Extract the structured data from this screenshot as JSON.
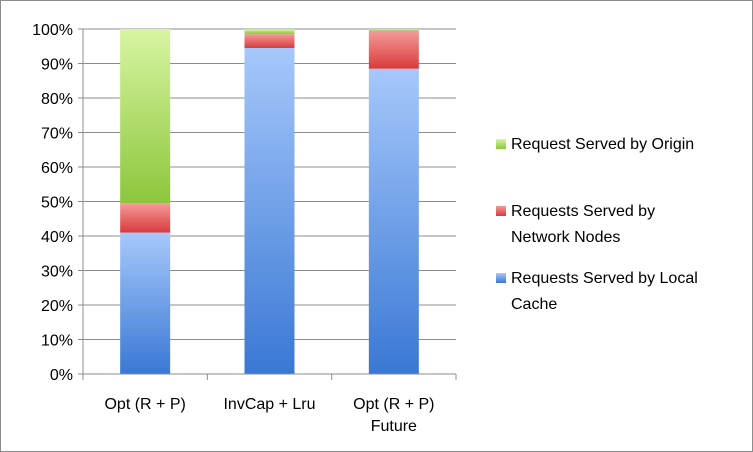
{
  "chart_data": {
    "type": "bar",
    "stacked": true,
    "categories": [
      [
        "Opt (R + P)"
      ],
      [
        "InvCap + Lru"
      ],
      [
        "Opt  (R + P)",
        "Future"
      ]
    ],
    "y_ticks": [
      "0%",
      "10%",
      "20%",
      "30%",
      "40%",
      "50%",
      "60%",
      "70%",
      "80%",
      "90%",
      "100%"
    ],
    "ylim": [
      0,
      100
    ],
    "grid": true,
    "legend_position": "right",
    "series": [
      {
        "name": "Requests Served by Local Cache",
        "legend_lines": [
          "Requests Served by Local",
          "Cache"
        ],
        "values": [
          41,
          94.5,
          88.5
        ],
        "color_top": "#a6c8fb",
        "color_bottom": "#3a78d4"
      },
      {
        "name": "Requests Served by Network Nodes",
        "legend_lines": [
          "Requests Served by",
          "Network Nodes"
        ],
        "values": [
          8.5,
          4,
          11
        ],
        "color_top": "#f59a9a",
        "color_bottom": "#d93b3b"
      },
      {
        "name": "Request Served by Origin",
        "legend_lines": [
          "Request Served by Origin"
        ],
        "values": [
          50.5,
          1.5,
          0.5
        ],
        "color_top": "#d8f5a2",
        "color_bottom": "#8cc63c"
      }
    ]
  }
}
